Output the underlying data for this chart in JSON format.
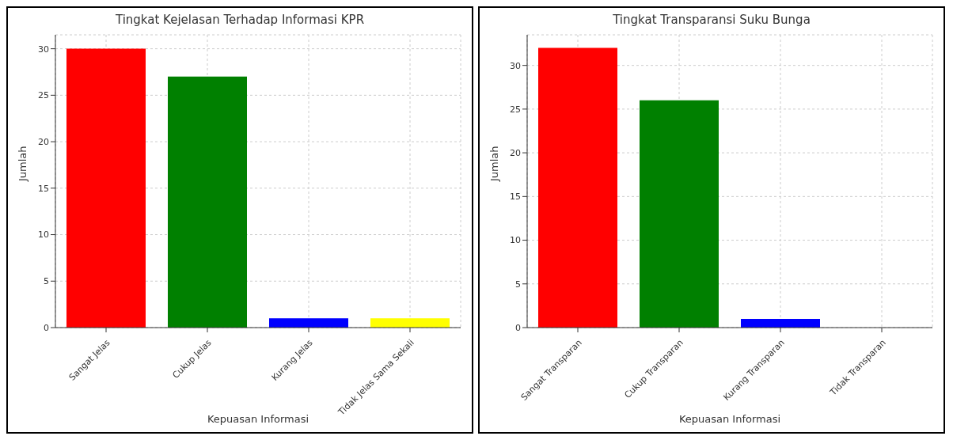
{
  "chart_data": [
    {
      "type": "bar",
      "title": "Tingkat Kejelasan Terhadap Informasi KPR",
      "xlabel": "Kepuasan Informasi",
      "ylabel": "Jumlah",
      "categories": [
        "Sangat Jelas",
        "Cukup Jelas",
        "Kurang Jelas",
        "Tidak Jelas Sama Sekali"
      ],
      "values": [
        30,
        27,
        1,
        1
      ],
      "colors": [
        "#ff0000",
        "#008000",
        "#0000ff",
        "#ffff00"
      ],
      "ylim": [
        0,
        31.5
      ],
      "yticks": [
        0,
        5,
        10,
        15,
        20,
        25,
        30
      ],
      "grid": true
    },
    {
      "type": "bar",
      "title": "Tingkat Transparansi Suku Bunga",
      "xlabel": "Kepuasan Informasi",
      "ylabel": "Jumlah",
      "categories": [
        "Sangat Transparan",
        "Cukup Transparan",
        "Kurang Transparan",
        "Tidak Transparan"
      ],
      "values": [
        32,
        26,
        1,
        0
      ],
      "colors": [
        "#ff0000",
        "#008000",
        "#0000ff",
        "#ffff00"
      ],
      "ylim": [
        0,
        33.5
      ],
      "yticks": [
        0,
        5,
        10,
        15,
        20,
        25,
        30
      ],
      "grid": true
    }
  ]
}
